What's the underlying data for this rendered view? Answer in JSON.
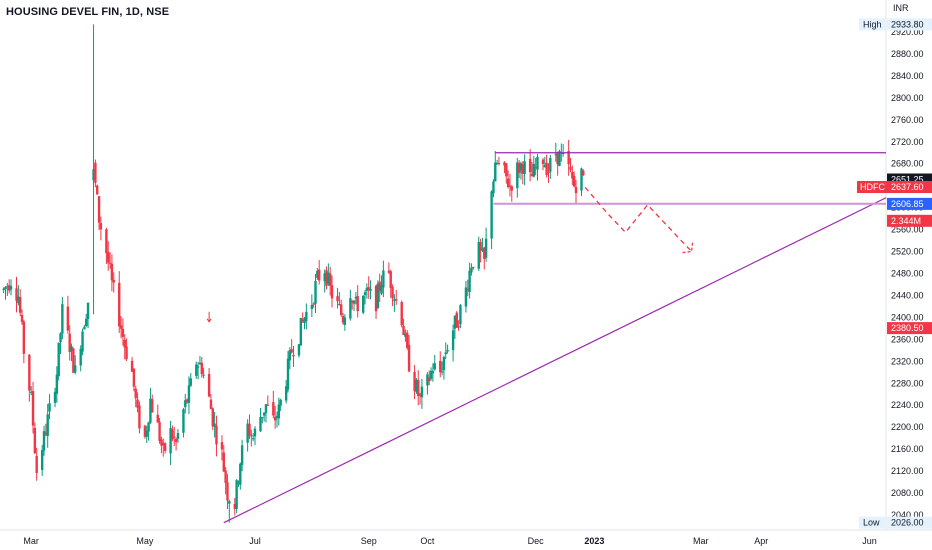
{
  "chart_data": {
    "type": "candlestick",
    "title": "HOUSING DEVEL FIN, 1D, NSE",
    "currency": "INR",
    "ylim": [
      2026,
      2940
    ],
    "y_ticks": [
      2920,
      2880,
      2840,
      2800,
      2760,
      2720,
      2680,
      2640,
      2600,
      2560,
      2520,
      2480,
      2440,
      2400,
      2360,
      2320,
      2280,
      2240,
      2200,
      2160,
      2120,
      2080,
      2040
    ],
    "y_tick_labels": [
      "2920.00",
      "2880.00",
      "2840.00",
      "2800.00",
      "2760.00",
      "2720.00",
      "2680.00",
      "2640.00",
      "2600.00",
      "2560.00",
      "2520.00",
      "2480.00",
      "2440.00",
      "2400.00",
      "2360.00",
      "2320.00",
      "2280.00",
      "2240.00",
      "2200.00",
      "2160.00",
      "2120.00",
      "2080.00",
      "2040.00"
    ],
    "x_range": [
      "2022-02-12",
      "2023-06-10"
    ],
    "x_ticks": [
      {
        "label": "Mar",
        "date": "2022-03-01",
        "bold": false
      },
      {
        "label": "May",
        "date": "2022-05-02",
        "bold": false
      },
      {
        "label": "Jul",
        "date": "2022-07-01",
        "bold": false
      },
      {
        "label": "Sep",
        "date": "2022-09-01",
        "bold": false
      },
      {
        "label": "Oct",
        "date": "2022-10-03",
        "bold": false
      },
      {
        "label": "Dec",
        "date": "2022-12-01",
        "bold": false
      },
      {
        "label": "2023",
        "date": "2023-01-02",
        "bold": true
      },
      {
        "label": "Mar",
        "date": "2023-03-01",
        "bold": false
      },
      {
        "label": "Apr",
        "date": "2023-04-03",
        "bold": false
      },
      {
        "label": "Jun",
        "date": "2023-06-01",
        "bold": false
      }
    ],
    "colors": {
      "up": "#089981",
      "down": "#f23645",
      "drawing": "#9c27b0",
      "hline_support": "#ce93d8",
      "forecast": "#f23645",
      "price_badge_blue": "#2962ff",
      "price_badge_dark": "#131722"
    },
    "price_path": [
      [
        "2022-02-14",
        2450
      ],
      [
        "2022-02-18",
        2470
      ],
      [
        "2022-02-22",
        2440
      ],
      [
        "2022-02-25",
        2340
      ],
      [
        "2022-03-01",
        2250
      ],
      [
        "2022-03-04",
        2120
      ],
      [
        "2022-03-08",
        2180
      ],
      [
        "2022-03-11",
        2230
      ],
      [
        "2022-03-15",
        2300
      ],
      [
        "2022-03-18",
        2410
      ],
      [
        "2022-03-22",
        2350
      ],
      [
        "2022-03-25",
        2300
      ],
      [
        "2022-03-29",
        2380
      ],
      [
        "2022-04-01",
        2430
      ],
      [
        "2022-04-04",
        2670
      ],
      [
        "2022-04-07",
        2580
      ],
      [
        "2022-04-11",
        2520
      ],
      [
        "2022-04-14",
        2460
      ],
      [
        "2022-04-18",
        2400
      ],
      [
        "2022-04-21",
        2350
      ],
      [
        "2022-04-25",
        2300
      ],
      [
        "2022-04-28",
        2220
      ],
      [
        "2022-05-02",
        2180
      ],
      [
        "2022-05-05",
        2250
      ],
      [
        "2022-05-09",
        2200
      ],
      [
        "2022-05-12",
        2150
      ],
      [
        "2022-05-16",
        2190
      ],
      [
        "2022-05-19",
        2170
      ],
      [
        "2022-05-23",
        2230
      ],
      [
        "2022-05-26",
        2260
      ],
      [
        "2022-05-30",
        2320
      ],
      [
        "2022-06-02",
        2310
      ],
      [
        "2022-06-06",
        2250
      ],
      [
        "2022-06-09",
        2200
      ],
      [
        "2022-06-13",
        2150
      ],
      [
        "2022-06-16",
        2080
      ],
      [
        "2022-06-20",
        2060
      ],
      [
        "2022-06-23",
        2140
      ],
      [
        "2022-06-27",
        2200
      ],
      [
        "2022-06-30",
        2180
      ],
      [
        "2022-07-04",
        2220
      ],
      [
        "2022-07-07",
        2240
      ],
      [
        "2022-07-11",
        2210
      ],
      [
        "2022-07-14",
        2230
      ],
      [
        "2022-07-18",
        2290
      ],
      [
        "2022-07-21",
        2340
      ],
      [
        "2022-07-25",
        2370
      ],
      [
        "2022-07-28",
        2400
      ],
      [
        "2022-08-01",
        2430
      ],
      [
        "2022-08-04",
        2470
      ],
      [
        "2022-08-08",
        2490
      ],
      [
        "2022-08-11",
        2450
      ],
      [
        "2022-08-15",
        2420
      ],
      [
        "2022-08-18",
        2400
      ],
      [
        "2022-08-22",
        2450
      ],
      [
        "2022-08-25",
        2420
      ],
      [
        "2022-08-29",
        2440
      ],
      [
        "2022-09-01",
        2440
      ],
      [
        "2022-09-05",
        2430
      ],
      [
        "2022-09-08",
        2470
      ],
      [
        "2022-09-12",
        2480
      ],
      [
        "2022-09-15",
        2440
      ],
      [
        "2022-09-19",
        2400
      ],
      [
        "2022-09-22",
        2330
      ],
      [
        "2022-09-26",
        2280
      ],
      [
        "2022-09-29",
        2250
      ],
      [
        "2022-10-03",
        2280
      ],
      [
        "2022-10-06",
        2310
      ],
      [
        "2022-10-10",
        2300
      ],
      [
        "2022-10-13",
        2340
      ],
      [
        "2022-10-17",
        2380
      ],
      [
        "2022-10-20",
        2400
      ],
      [
        "2022-10-24",
        2450
      ],
      [
        "2022-10-27",
        2500
      ],
      [
        "2022-10-31",
        2520
      ],
      [
        "2022-11-03",
        2500
      ],
      [
        "2022-11-07",
        2640
      ],
      [
        "2022-11-10",
        2680
      ],
      [
        "2022-11-14",
        2660
      ],
      [
        "2022-11-17",
        2640
      ],
      [
        "2022-11-21",
        2670
      ],
      [
        "2022-11-24",
        2680
      ],
      [
        "2022-11-28",
        2650
      ],
      [
        "2022-12-01",
        2670
      ],
      [
        "2022-12-05",
        2690
      ],
      [
        "2022-12-08",
        2670
      ],
      [
        "2022-12-12",
        2700
      ],
      [
        "2022-12-15",
        2690
      ],
      [
        "2022-12-19",
        2670
      ],
      [
        "2022-12-22",
        2640
      ],
      [
        "2022-12-26",
        2660
      ],
      [
        "2022-12-28",
        2651
      ]
    ],
    "extremes": {
      "high_label": "High",
      "high_value": "2933.80",
      "high_date": "2022-04-04",
      "low_label": "Low",
      "low_value": "2026.00",
      "low_date": "2022-06-17"
    },
    "drawings": {
      "resistance": {
        "price": 2700,
        "from": "2022-11-09",
        "to": "2023-06-10"
      },
      "support": {
        "price": 2607,
        "from": "2022-11-08",
        "to": "2023-06-10"
      },
      "trendline": {
        "x1": "2022-06-14",
        "y1": 2026,
        "x2": "2023-06-10",
        "y2": 2618
      },
      "forecast": [
        [
          "2022-12-28",
          2637
        ],
        [
          "2023-01-09",
          2590
        ],
        [
          "2023-01-19",
          2555
        ],
        [
          "2023-01-31",
          2605
        ],
        [
          "2023-02-24",
          2520
        ]
      ],
      "forecast_arrow_end": [
        "2023-02-24",
        2520
      ],
      "arrow_marker": {
        "date": "2022-06-06",
        "price": 2392
      }
    },
    "price_badges": [
      {
        "label": "",
        "value": "2651.25",
        "price": 2651.25,
        "style": "dark"
      },
      {
        "label": "HDFC",
        "value": "2637.60",
        "price": 2637.6,
        "style": "red"
      },
      {
        "label": "",
        "value": "2606.85",
        "price": 2606.85,
        "style": "blue"
      },
      {
        "label": "",
        "value": "2.344M",
        "price": 2576,
        "style": "red"
      },
      {
        "label": "",
        "value": "2380.50",
        "price": 2380.5,
        "style": "red"
      }
    ]
  }
}
